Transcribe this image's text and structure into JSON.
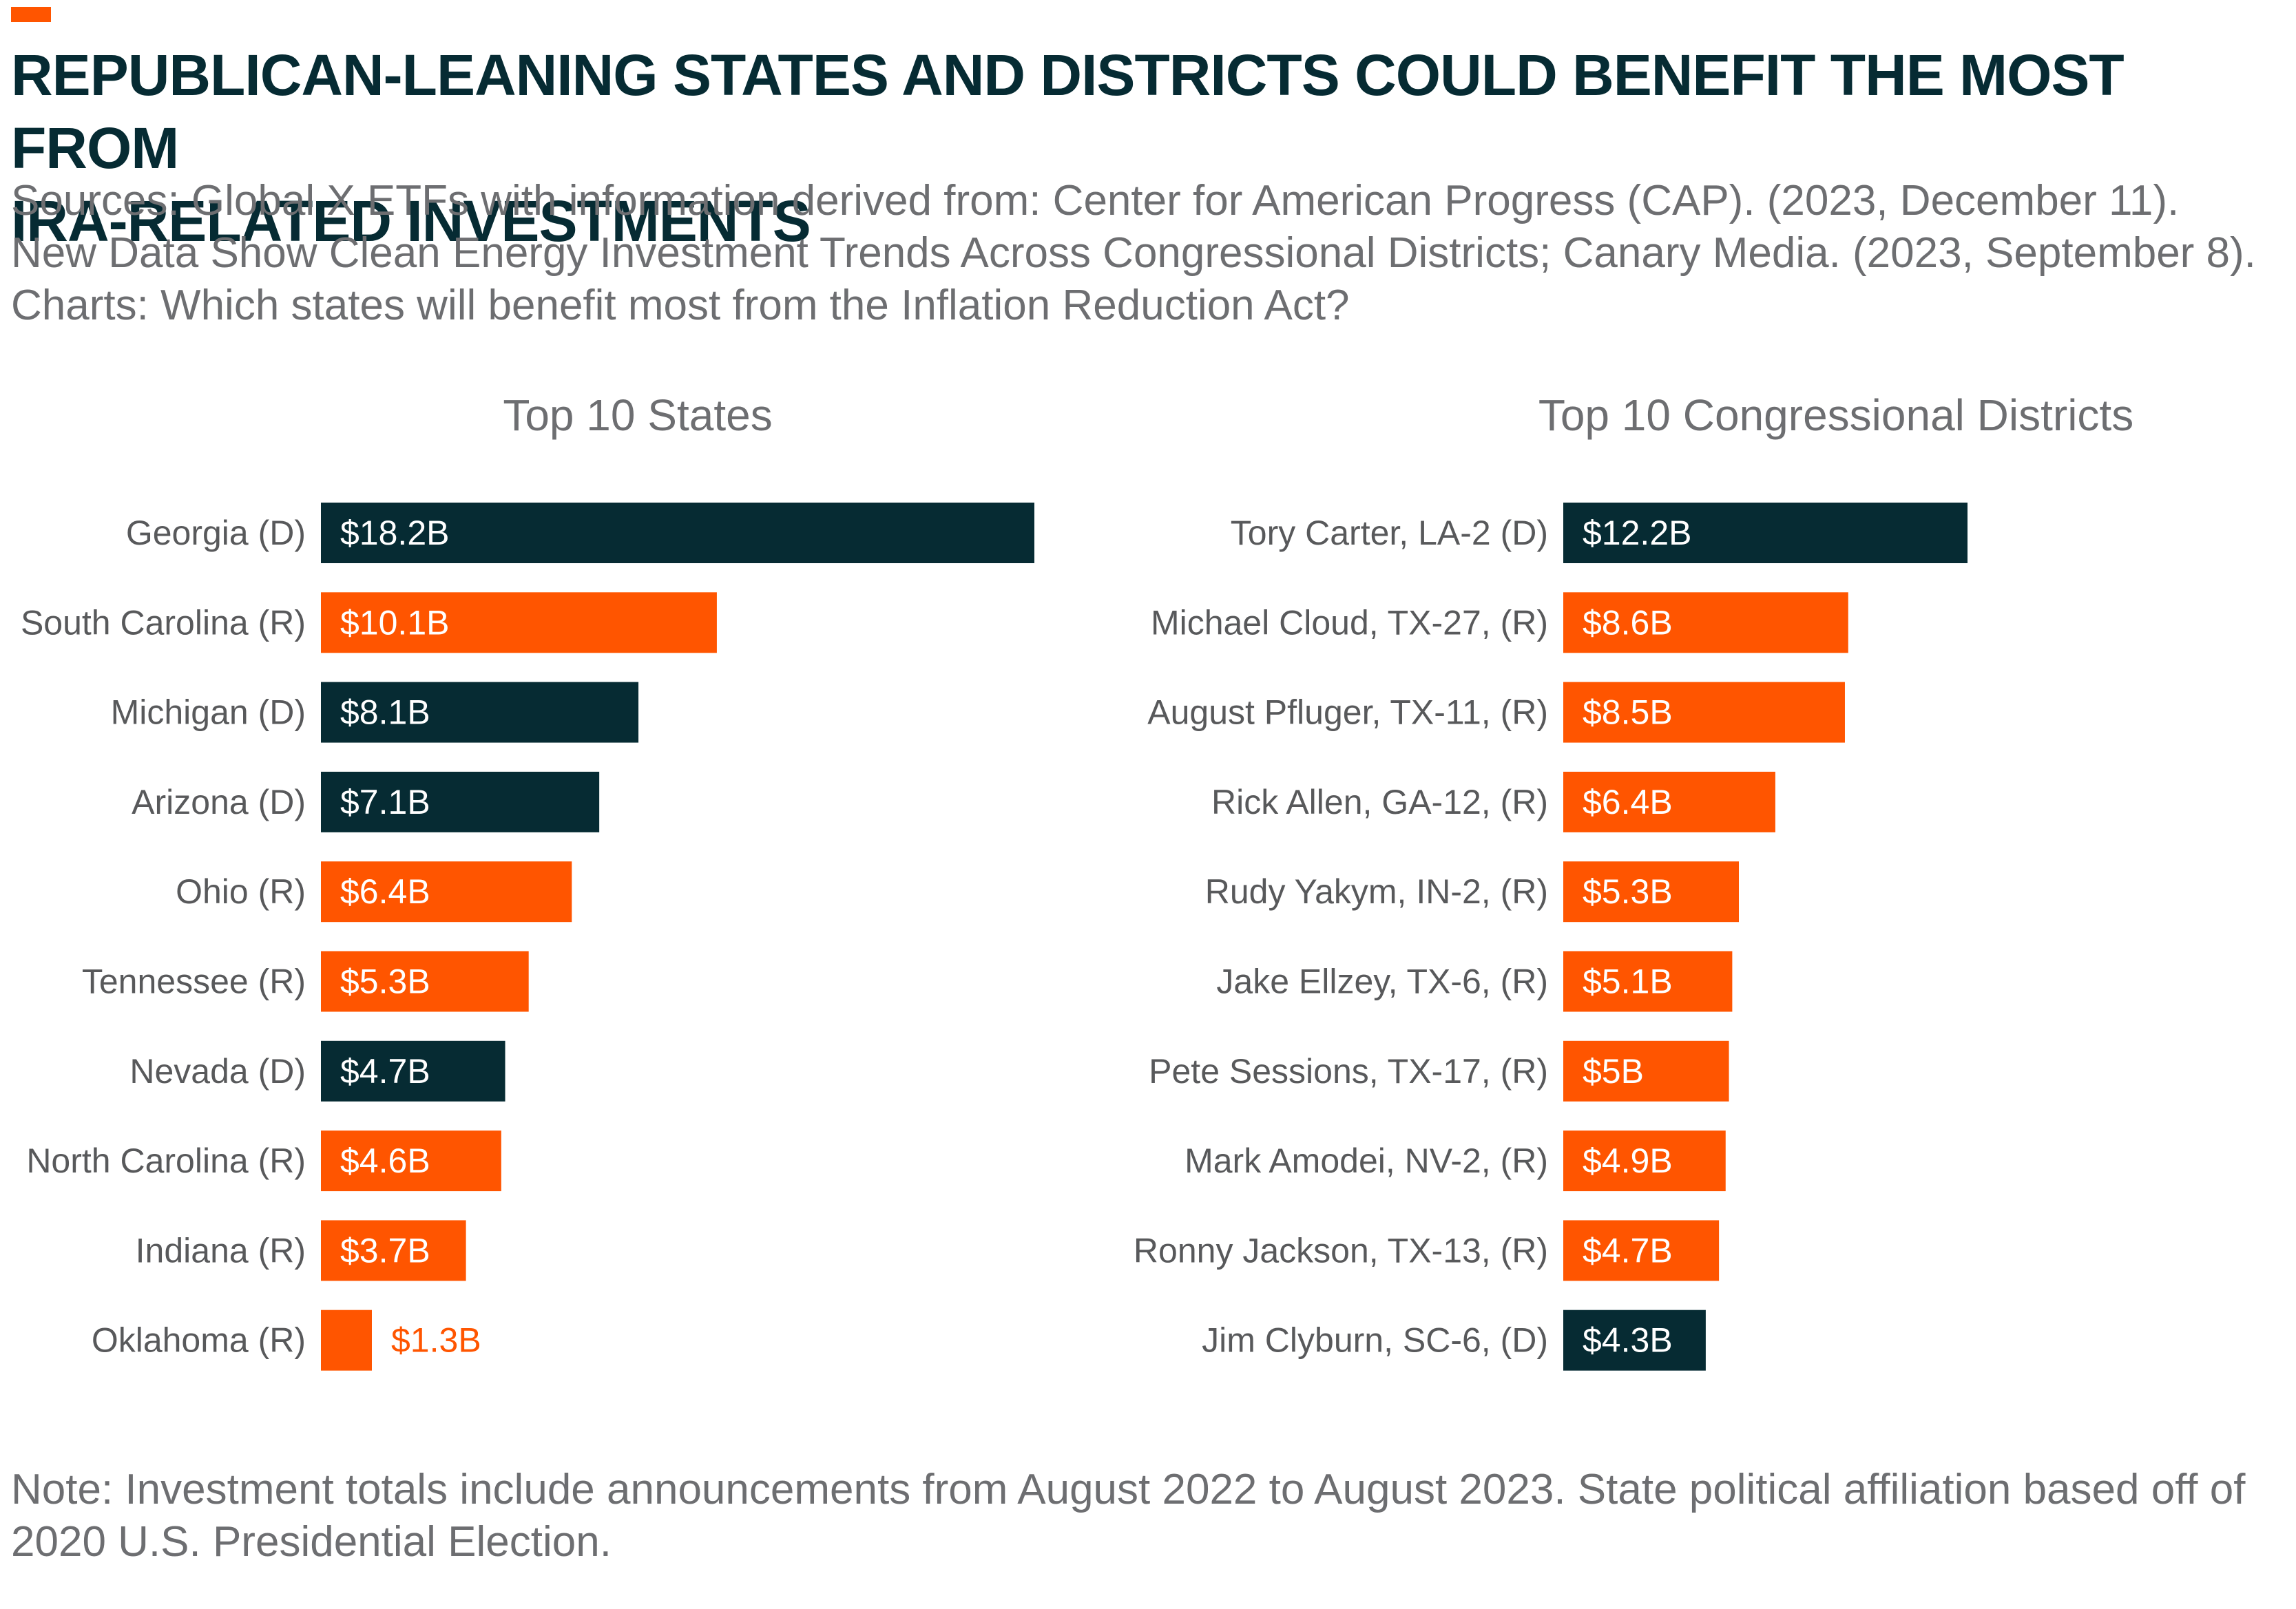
{
  "header": {
    "title_line1": "REPUBLICAN-LEANING STATES AND DISTRICTS COULD BENEFIT THE MOST FROM",
    "title_line2": "IRA-RELATED INVESTMENTS",
    "sources_line1": "Sources: Global X ETFs with information derived from: Center for American Progress (CAP). (2023, December 11).",
    "sources_line2": "New Data Show Clean Energy Investment Trends Across Congressional Districts; Canary Media. (2023, September 8).",
    "sources_line3": "Charts: Which states will benefit most from the Inflation Reduction Act?"
  },
  "footer": {
    "note_line1": "Note: Investment totals include announcements from August 2022 to August 2023. State political affiliation based off of",
    "note_line2": "2020 U.S. Presidential Election."
  },
  "colors": {
    "democrat": "#062b33",
    "republican": "#ff5500",
    "bar_text": "#ffffff"
  },
  "chart_data": [
    {
      "type": "bar",
      "orientation": "horizontal",
      "title": "Top 10 States",
      "xlim": [
        0,
        18.2
      ],
      "unit": "B",
      "categories": [
        "Georgia (D)",
        "South Carolina (R)",
        "Michigan (D)",
        "Arizona (D)",
        "Ohio (R)",
        "Tennessee (R)",
        "Nevada (D)",
        "North Carolina (R)",
        "Indiana (R)",
        "Oklahoma (R)"
      ],
      "values": [
        18.2,
        10.1,
        8.1,
        7.1,
        6.4,
        5.3,
        4.7,
        4.6,
        3.7,
        1.3
      ],
      "labels": [
        "$18.2B",
        "$10.1B",
        "$8.1B",
        "$7.1B",
        "$6.4B",
        "$5.3B",
        "$4.7B",
        "$4.6B",
        "$3.7B",
        "$1.3B"
      ],
      "party": [
        "D",
        "R",
        "D",
        "D",
        "R",
        "R",
        "D",
        "R",
        "R",
        "R"
      ]
    },
    {
      "type": "bar",
      "orientation": "horizontal",
      "title": "Top 10 Congressional Districts",
      "xlim": [
        0,
        12.2
      ],
      "unit": "B",
      "categories": [
        "Tory Carter, LA-2 (D)",
        "Michael Cloud, TX-27, (R)",
        "August Pfluger, TX-11, (R)",
        "Rick Allen, GA-12, (R)",
        "Rudy Yakym, IN-2, (R)",
        "Jake Ellzey, TX-6, (R)",
        "Pete Sessions, TX-17, (R)",
        "Mark Amodei, NV-2, (R)",
        "Ronny Jackson, TX-13, (R)",
        "Jim Clyburn, SC-6, (D)"
      ],
      "values": [
        12.2,
        8.6,
        8.5,
        6.4,
        5.3,
        5.1,
        5.0,
        4.9,
        4.7,
        4.3
      ],
      "labels": [
        "$12.2B",
        "$8.6B",
        "$8.5B",
        "$6.4B",
        "$5.3B",
        "$5.1B",
        "$5B",
        "$4.9B",
        "$4.7B",
        "$4.3B"
      ],
      "party": [
        "D",
        "R",
        "R",
        "R",
        "R",
        "R",
        "R",
        "R",
        "R",
        "D"
      ]
    }
  ]
}
